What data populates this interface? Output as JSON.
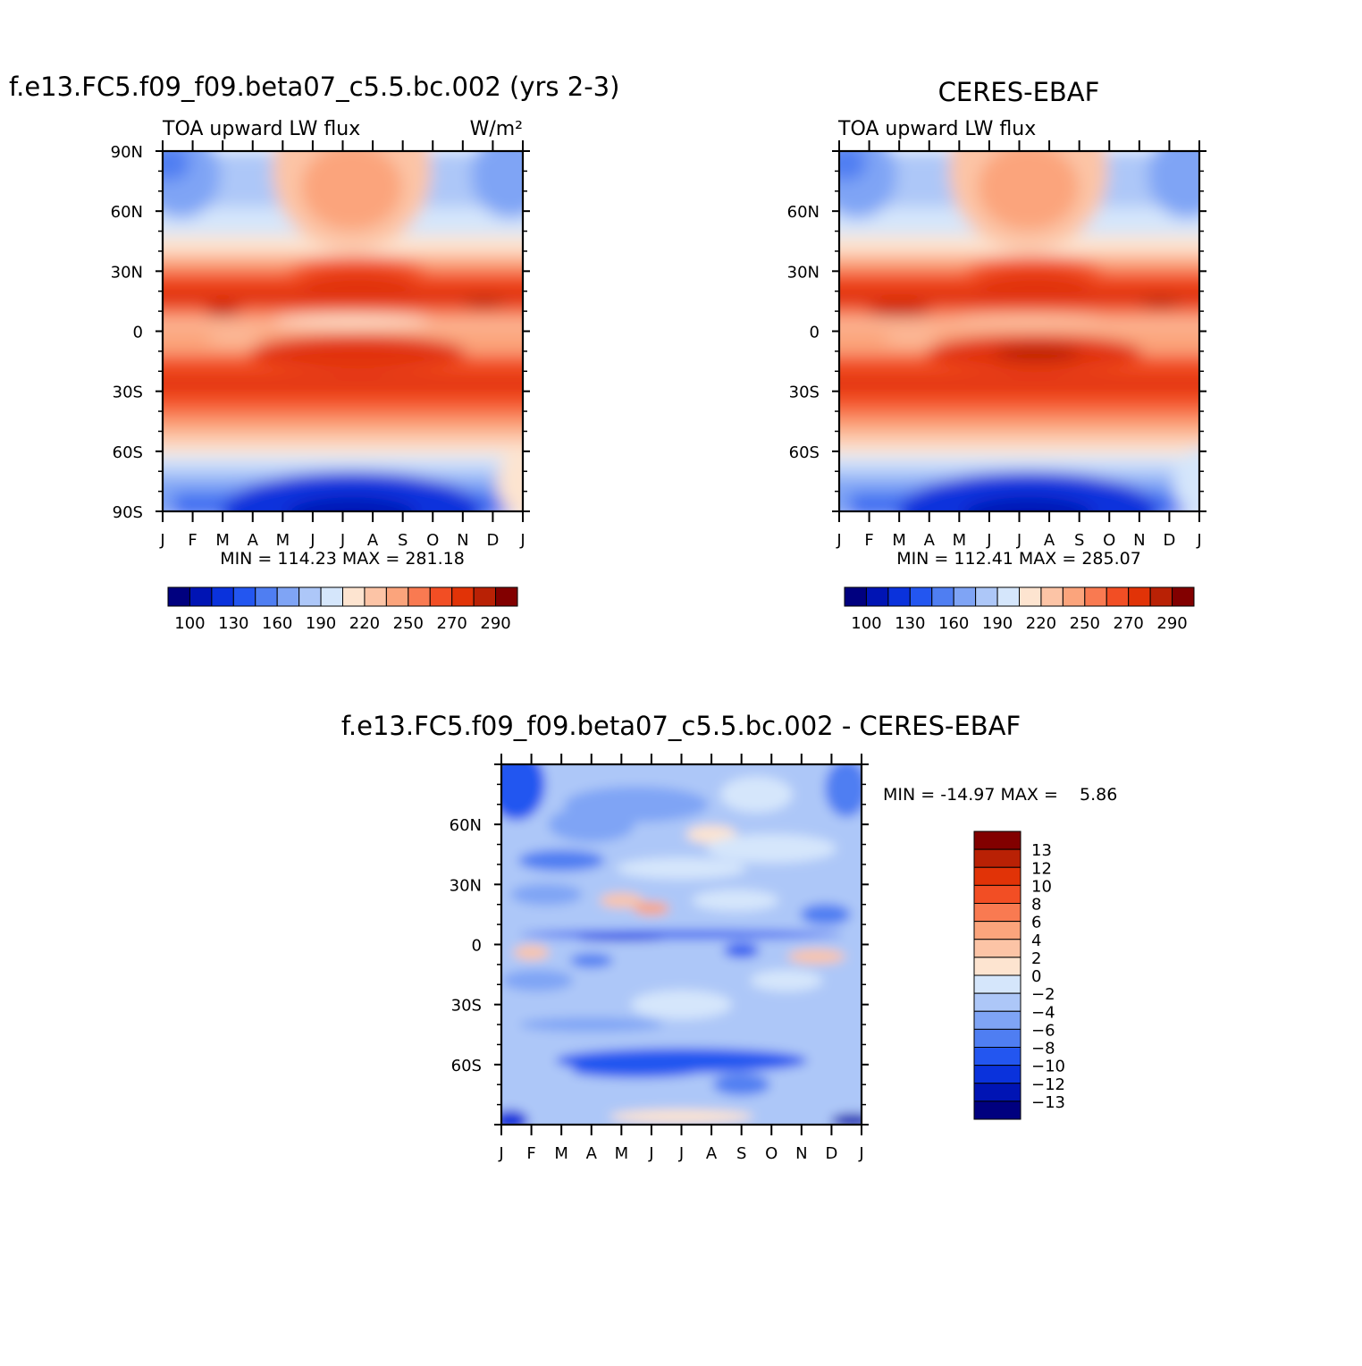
{
  "page": {
    "palette_full": [
      "#00007f",
      "#0014b4",
      "#0a32dc",
      "#2356f0",
      "#4f7ef2",
      "#7fa4f5",
      "#adc7f8",
      "#d5e6fb",
      "#fde4d0",
      "#fcc4a6",
      "#fba47c",
      "#f97a51",
      "#f24e24",
      "#e13307",
      "#b92105",
      "#820000"
    ],
    "palette_diff": [
      "#00007f",
      "#0014b4",
      "#0a32dc",
      "#2356f0",
      "#4f7ef2",
      "#7fa4f5",
      "#adc7f8",
      "#d5e6fb",
      "#fde4d0",
      "#fcc4a6",
      "#fba47c",
      "#f97a51",
      "#f24e24",
      "#e13307",
      "#b92105",
      "#820000"
    ]
  },
  "chart_data": [
    {
      "type": "heatmap",
      "panel": "model",
      "title": "f.e13.FC5.f09_f09.beta07_c5.5.bc.002 (yrs 2-3)",
      "left_label": "TOA upward LW flux",
      "right_label": "W/m²",
      "x_tick_labels": [
        "J",
        "F",
        "M",
        "A",
        "M",
        "J",
        "J",
        "A",
        "S",
        "O",
        "N",
        "D",
        "J"
      ],
      "y_tick_values": [
        90,
        60,
        30,
        0,
        -30,
        -60,
        -90
      ],
      "y_tick_labels": [
        "90N",
        "60N",
        "30N",
        "0",
        "30S",
        "60S",
        "90S"
      ],
      "ylim": [
        -90,
        90
      ],
      "stats_text": "MIN = 114.23 MAX = 281.18",
      "min": 114.23,
      "max": 281.18,
      "colorbar_levels": [
        100,
        130,
        160,
        190,
        220,
        250,
        270,
        290
      ]
    },
    {
      "type": "heatmap",
      "panel": "obs",
      "title": "CERES-EBAF",
      "left_label": "TOA upward LW flux",
      "right_label": "",
      "x_tick_labels": [
        "J",
        "F",
        "M",
        "A",
        "M",
        "J",
        "J",
        "A",
        "S",
        "O",
        "N",
        "D",
        "J"
      ],
      "y_tick_values": [
        60,
        30,
        0,
        -30,
        -60
      ],
      "y_tick_labels": [
        "60N",
        "30N",
        "0",
        "30S",
        "60S"
      ],
      "ylim": [
        -90,
        90
      ],
      "stats_text": "MIN = 112.41 MAX = 285.07",
      "min": 112.41,
      "max": 285.07,
      "colorbar_levels": [
        100,
        130,
        160,
        190,
        220,
        250,
        270,
        290
      ]
    },
    {
      "type": "heatmap",
      "panel": "diff",
      "title": "f.e13.FC5.f09_f09.beta07_c5.5.bc.002 - CERES-EBAF",
      "x_tick_labels": [
        "J",
        "F",
        "M",
        "A",
        "M",
        "J",
        "J",
        "A",
        "S",
        "O",
        "N",
        "D",
        "J"
      ],
      "y_tick_values": [
        60,
        30,
        0,
        -30,
        -60
      ],
      "y_tick_labels": [
        "60N",
        "30N",
        "0",
        "30S",
        "60S"
      ],
      "ylim": [
        -90,
        90
      ],
      "stats_text": "MIN = -14.97 MAX =    5.86",
      "min": -14.97,
      "max": 5.86,
      "colorbar_levels": [
        13,
        12,
        10,
        8,
        6,
        4,
        2,
        0,
        -2,
        -4,
        -6,
        -8,
        -10,
        -12,
        -13
      ]
    }
  ]
}
